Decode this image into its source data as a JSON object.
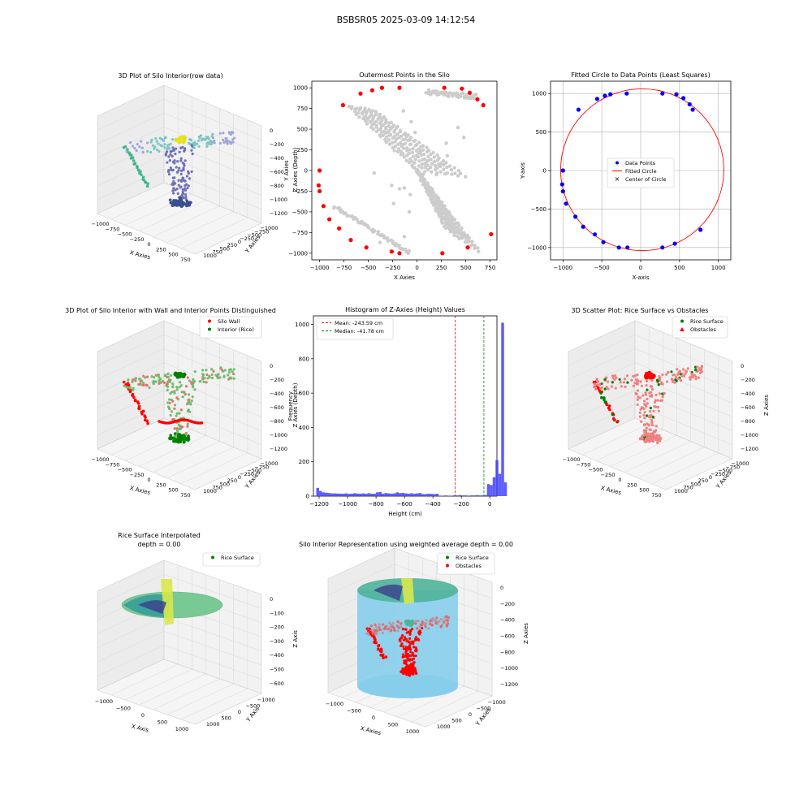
{
  "figure_title": "BSBSR05 2025-03-09 14:12:54",
  "colors": {
    "red": "#ff0000",
    "blue": "#0000ff",
    "green": "#008000",
    "gray": "#cccccc",
    "hist": "#4040ff",
    "sky": "#87ceeb"
  },
  "chart_data": [
    {
      "id": "p1",
      "type": "scatter",
      "title": "3D Plot of Silo Interior(row data)",
      "xlabel": "X Axies",
      "ylabel": "Y Axies",
      "zlabel": "Z Axies (Depth)",
      "x_ticks": [
        "−1000",
        "−750",
        "−500",
        "−250",
        "0",
        "250",
        "500",
        "750"
      ],
      "y_ticks": [
        "1000",
        "750",
        "500",
        "250",
        "0",
        "−250",
        "−500",
        "−750",
        "−1000"
      ],
      "z_ticks": [
        "0",
        "−200",
        "−400",
        "−600",
        "−800",
        "−1000",
        "−1200"
      ]
    },
    {
      "id": "p2",
      "type": "scatter",
      "title": "Outermost Points in the Silo",
      "xlabel": "X Axies",
      "ylabel": "Y Axies",
      "xlim": [
        -1080,
        820
      ],
      "ylim": [
        -1080,
        1080
      ],
      "x_ticks": [
        -1000,
        -750,
        -500,
        -250,
        0,
        250,
        500,
        750
      ],
      "y_ticks": [
        -1000,
        -750,
        -500,
        -250,
        0,
        250,
        500,
        750,
        1000
      ],
      "outer_points": [
        [
          -760,
          790
        ],
        [
          -580,
          930
        ],
        [
          -460,
          970
        ],
        [
          -360,
          1000
        ],
        [
          -180,
          1000
        ],
        [
          280,
          1000
        ],
        [
          460,
          990
        ],
        [
          540,
          940
        ],
        [
          620,
          860
        ],
        [
          680,
          790
        ],
        [
          760,
          -770
        ],
        [
          520,
          -930
        ],
        [
          260,
          -1000
        ],
        [
          -180,
          -1000
        ],
        [
          -260,
          -980
        ],
        [
          -520,
          -930
        ],
        [
          -680,
          -840
        ],
        [
          -800,
          -700
        ],
        [
          -900,
          -590
        ],
        [
          -960,
          -430
        ],
        [
          -1000,
          -250
        ],
        [
          -1010,
          -180
        ],
        [
          -1000,
          0
        ]
      ],
      "inner_points": [
        [
          -140,
          720
        ],
        [
          -60,
          590
        ],
        [
          -20,
          460
        ],
        [
          -440,
          -30
        ],
        [
          -260,
          -180
        ],
        [
          -180,
          -220
        ],
        [
          -240,
          -400
        ],
        [
          -130,
          -210
        ],
        [
          -70,
          -290
        ],
        [
          -80,
          -500
        ],
        [
          -130,
          -800
        ],
        [
          -380,
          -870
        ],
        [
          300,
          330
        ],
        [
          310,
          180
        ],
        [
          200,
          -50
        ],
        [
          120,
          120
        ],
        [
          40,
          -120
        ],
        [
          350,
          -580
        ],
        [
          420,
          520
        ],
        [
          480,
          400
        ],
        [
          80,
          80
        ],
        [
          0,
          0
        ],
        [
          60,
          -50
        ],
        [
          -40,
          40
        ]
      ]
    },
    {
      "id": "p3",
      "type": "scatter",
      "title": "Fitted Circle to Data Points (Least Squares)",
      "xlabel": "X-axis",
      "ylabel": "Y-axis",
      "xlim": [
        -1160,
        1160
      ],
      "ylim": [
        -1160,
        1160
      ],
      "x_ticks": [
        -1000,
        -500,
        0,
        500,
        1000
      ],
      "y_ticks": [
        -1000,
        -500,
        0,
        500,
        1000
      ],
      "legend": [
        "Data Points",
        "Fitted Circle",
        "Center of Circle"
      ],
      "circle": {
        "cx": 20,
        "cy": 10,
        "r": 1050
      },
      "data_points": [
        [
          -800,
          790
        ],
        [
          -560,
          930
        ],
        [
          -460,
          970
        ],
        [
          -390,
          990
        ],
        [
          -180,
          1000
        ],
        [
          280,
          1000
        ],
        [
          460,
          990
        ],
        [
          550,
          940
        ],
        [
          630,
          860
        ],
        [
          670,
          790
        ],
        [
          770,
          -770
        ],
        [
          440,
          -950
        ],
        [
          280,
          -1000
        ],
        [
          -170,
          -1000
        ],
        [
          -280,
          -1000
        ],
        [
          -480,
          -930
        ],
        [
          -590,
          -830
        ],
        [
          -740,
          -730
        ],
        [
          -840,
          -600
        ],
        [
          -960,
          -430
        ],
        [
          -1000,
          -270
        ],
        [
          -1010,
          -180
        ],
        [
          -1000,
          0
        ]
      ]
    },
    {
      "id": "p4",
      "type": "scatter",
      "title": "3D Plot of Silo Interior with Wall and Interior Points Distinguished",
      "xlabel": "X Axies",
      "ylabel": "Y Axies",
      "zlabel": "Z Axies (Depth)",
      "legend": [
        "Silo Wall",
        "Interior (Rice)"
      ],
      "x_ticks": [
        "−1000",
        "−750",
        "−500",
        "−250",
        "0",
        "250",
        "500",
        "750"
      ],
      "y_ticks": [
        "1000",
        "750",
        "500",
        "250",
        "0",
        "−250",
        "−500",
        "−750",
        "−1000"
      ],
      "z_ticks": [
        "0",
        "−200",
        "−400",
        "−600",
        "−800",
        "−1000",
        "−1200"
      ]
    },
    {
      "id": "p5",
      "type": "bar",
      "title": "Histogram of Z-Axies (Height) Values",
      "xlabel": "Height (cm)",
      "ylabel": "Frequency",
      "xlim": [
        -1240,
        50
      ],
      "ylim": [
        0,
        1050
      ],
      "x_ticks": [
        -1200,
        -1000,
        -800,
        -600,
        -400,
        -200,
        0
      ],
      "y_ticks": [
        0,
        200,
        400,
        600,
        800,
        1000
      ],
      "mean": -243.59,
      "median": -41.78,
      "legend": [
        "Mean: -243.59 cm",
        "Median: -41.78 cm"
      ],
      "bin_start": -1220,
      "bin_width": 20,
      "values": [
        48,
        30,
        22,
        20,
        18,
        16,
        16,
        15,
        14,
        14,
        16,
        13,
        14,
        17,
        15,
        14,
        16,
        14,
        17,
        14,
        14,
        22,
        24,
        14,
        18,
        16,
        14,
        16,
        22,
        18,
        19,
        16,
        14,
        17,
        14,
        16,
        18,
        12,
        12,
        14,
        13,
        12,
        14,
        2,
        2,
        4,
        2,
        2,
        4,
        4,
        6,
        4,
        4,
        2,
        4,
        4,
        5,
        4,
        4,
        6,
        70,
        65,
        110,
        210,
        130,
        1010,
        80
      ]
    },
    {
      "id": "p6",
      "type": "scatter",
      "title": "3D Scatter Plot: Rice Surface vs Obstacles",
      "xlabel": "X Axies",
      "ylabel": "Y Axies",
      "zlabel": "Z Axies",
      "legend": [
        "Rice Surface",
        "Obstacles"
      ],
      "x_ticks": [
        "−1000",
        "−750",
        "−500",
        "−250",
        "0",
        "250",
        "500",
        "750"
      ],
      "y_ticks": [
        "1000",
        "750",
        "500",
        "250",
        "0",
        "−250",
        "−500",
        "−750",
        "−1000"
      ],
      "z_ticks": [
        "0",
        "−200",
        "−400",
        "−600",
        "−800",
        "−1000",
        "−1200"
      ]
    },
    {
      "id": "p7",
      "type": "area",
      "title": "Rice Surface Interpolated\ndepth = 0.00",
      "xlabel": "X Axis",
      "ylabel": "Y Axis",
      "zlabel": "Z Axis",
      "legend": [
        "Rice Surface"
      ],
      "x_ticks": [
        "−1000",
        "−500",
        "0",
        "500",
        "1000"
      ],
      "y_ticks": [
        "1000",
        "500",
        "0",
        "−500",
        "−1000"
      ],
      "z_ticks": [
        "0",
        "−100",
        "−200",
        "−300",
        "−400",
        "−500",
        "−600"
      ]
    },
    {
      "id": "p8",
      "type": "area",
      "title": "Silo Interior Representation using weighted average depth = 0.00",
      "xlabel": "X Axies",
      "ylabel": "Y Axies",
      "zlabel": "Z Axies",
      "legend": [
        "Rice Surface",
        "Obstacles"
      ],
      "x_ticks": [
        "−1000",
        "−500",
        "0",
        "500",
        "1000"
      ],
      "y_ticks": [
        "1000",
        "500",
        "0",
        "−500",
        "−1000"
      ],
      "z_ticks": [
        "0",
        "−200",
        "−400",
        "−600",
        "−800",
        "−1000",
        "−1200"
      ]
    }
  ]
}
